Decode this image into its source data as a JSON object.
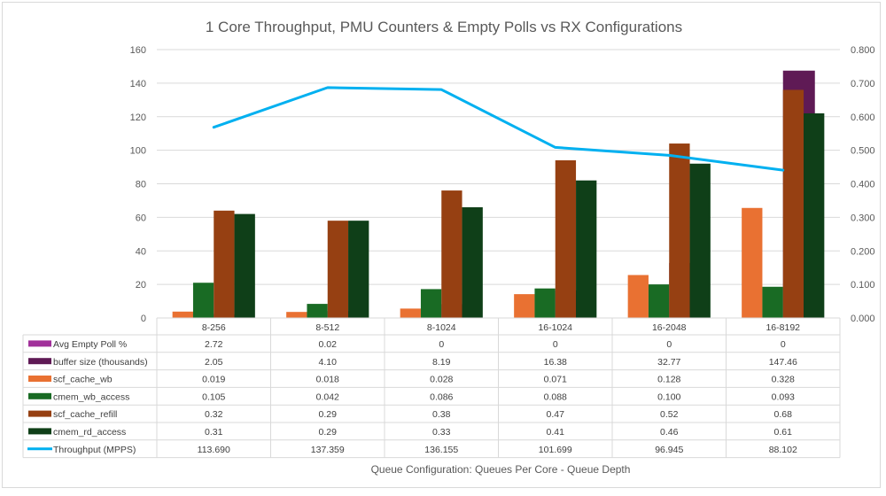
{
  "chart_data": {
    "type": "bar",
    "title": "1 Core Throughput, PMU Counters & Empty Polls vs RX Configurations",
    "xlabel": "Queue Configuration: Queues Per Core - Queue Depth",
    "ylabel": "",
    "y2label": "",
    "categories": [
      "8-256",
      "8-512",
      "8-1024",
      "16-1024",
      "16-2048",
      "16-8192"
    ],
    "ylim": [
      0,
      160
    ],
    "y_ticks": [
      "0",
      "20",
      "40",
      "60",
      "80",
      "100",
      "120",
      "140",
      "160"
    ],
    "y_tick_values": [
      0,
      20,
      40,
      60,
      80,
      100,
      120,
      140,
      160
    ],
    "y2lim": [
      0,
      0.8
    ],
    "y2_ticks": [
      "0.000",
      "0.100",
      "0.200",
      "0.300",
      "0.400",
      "0.500",
      "0.600",
      "0.700",
      "0.800"
    ],
    "y2_tick_values": [
      0,
      0.1,
      0.2,
      0.3,
      0.4,
      0.5,
      0.6,
      0.7,
      0.8
    ],
    "grid": true,
    "legend": "data-table-left",
    "series": [
      {
        "name": "Avg Empty Poll %",
        "type": "bar",
        "axis": "primary",
        "color": "#a1309a",
        "values": [
          2.72,
          0.02,
          0,
          0,
          0,
          0
        ],
        "labels": [
          "2.72",
          "0.02",
          "0",
          "0",
          "0",
          "0"
        ]
      },
      {
        "name": "buffer size (thousands)",
        "type": "bar",
        "axis": "primary",
        "color": "#5f1a55",
        "values": [
          2.05,
          4.1,
          8.19,
          16.38,
          32.77,
          147.46
        ],
        "labels": [
          "2.05",
          "4.10",
          "8.19",
          "16.38",
          "32.77",
          "147.46"
        ]
      },
      {
        "name": "scf_cache_wb",
        "type": "bar",
        "axis": "secondary",
        "color": "#e97132",
        "values": [
          0.019,
          0.018,
          0.028,
          0.071,
          0.128,
          0.328
        ],
        "labels": [
          "0.019",
          "0.018",
          "0.028",
          "0.071",
          "0.128",
          "0.328"
        ]
      },
      {
        "name": "cmem_wb_access",
        "type": "bar",
        "axis": "secondary",
        "color": "#196b24",
        "values": [
          0.105,
          0.042,
          0.086,
          0.088,
          0.1,
          0.093
        ],
        "labels": [
          "0.105",
          "0.042",
          "0.086",
          "0.088",
          "0.100",
          "0.093"
        ]
      },
      {
        "name": "scf_cache_refill",
        "type": "bar",
        "axis": "secondary",
        "color": "#964012",
        "values": [
          0.32,
          0.29,
          0.38,
          0.47,
          0.52,
          0.68
        ],
        "labels": [
          "0.32",
          "0.29",
          "0.38",
          "0.47",
          "0.52",
          "0.68"
        ]
      },
      {
        "name": "cmem_rd_access",
        "type": "bar",
        "axis": "secondary",
        "color": "#0f3f18",
        "values": [
          0.31,
          0.29,
          0.33,
          0.41,
          0.46,
          0.61
        ],
        "labels": [
          "0.31",
          "0.29",
          "0.33",
          "0.41",
          "0.46",
          "0.61"
        ]
      },
      {
        "name": "Throughput (MPPS)",
        "type": "line",
        "axis": "primary",
        "color": "#00b0f0",
        "values": [
          113.69,
          137.359,
          136.155,
          101.699,
          96.945,
          88.102
        ],
        "labels": [
          "113.690",
          "137.359",
          "136.155",
          "101.699",
          "96.945",
          "88.102"
        ]
      }
    ]
  },
  "colors": {
    "grid": "#d9d9d9",
    "text": "#595959",
    "border": "#d9d9d9"
  }
}
